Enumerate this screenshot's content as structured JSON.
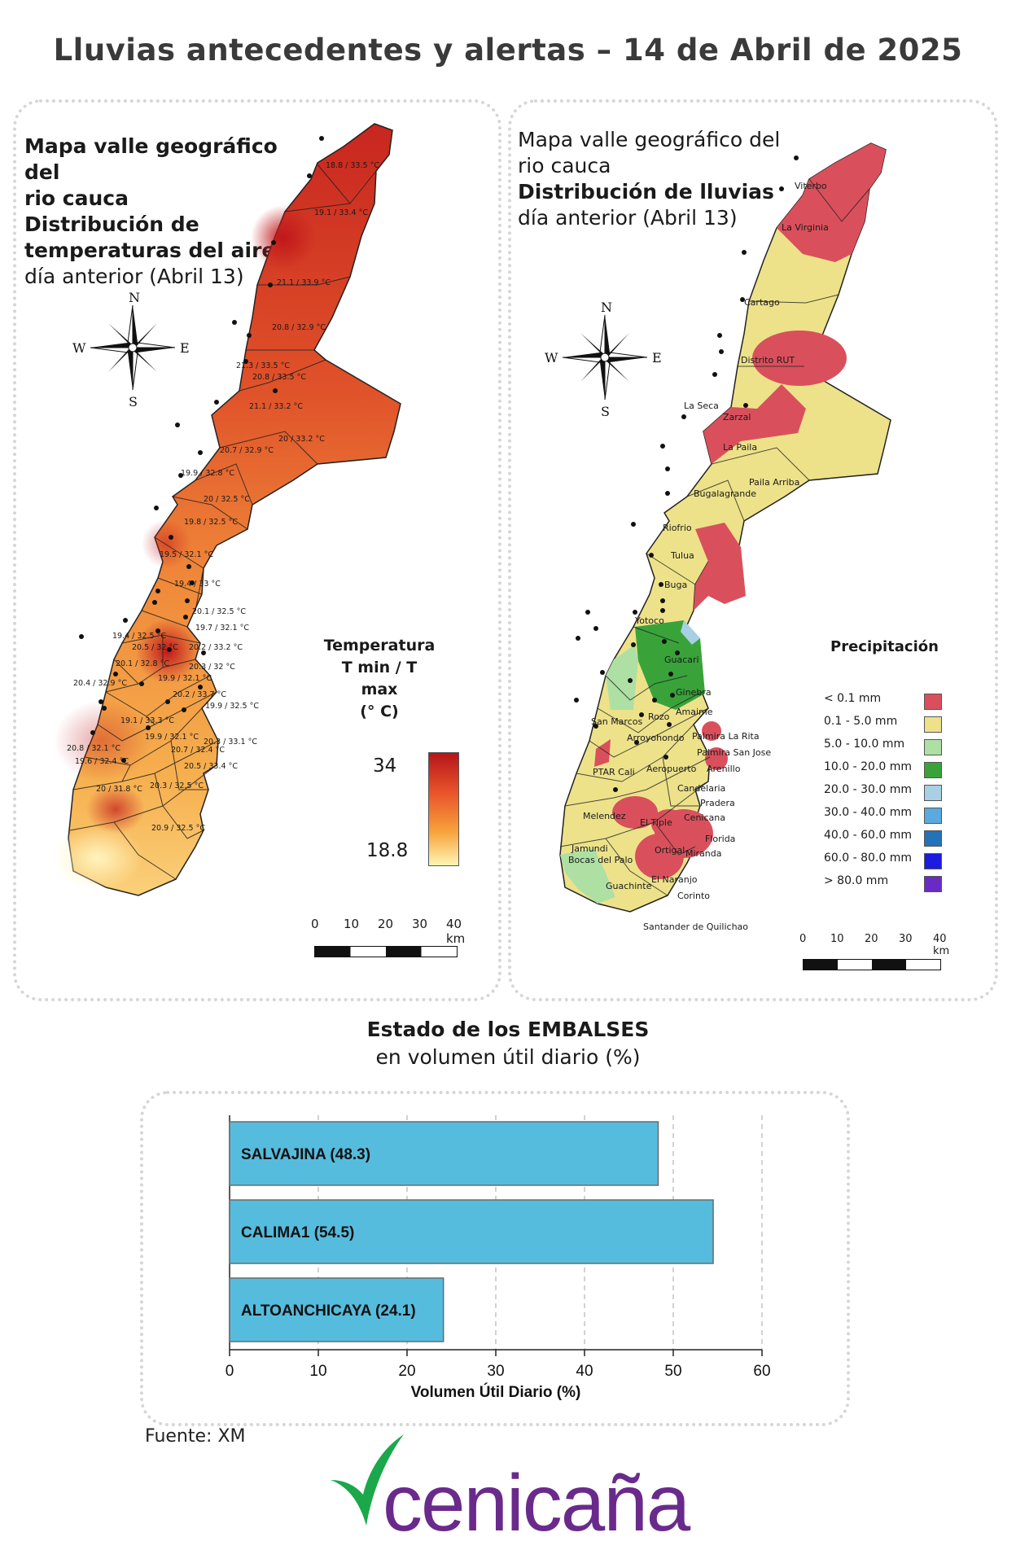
{
  "title": "Lluvias antecedentes y alertas – 14 de Abril de 2025",
  "temperature_map": {
    "title_line1": "Mapa valle geográfico del",
    "title_line2": "rio cauca",
    "title_line3": "Distribución de",
    "title_line4": "temperaturas del aire",
    "title_line5": "día anterior (Abril 13)",
    "compass": {
      "n": "N",
      "s": "S",
      "e": "E",
      "w": "W"
    },
    "legend_title_line1": "Temperatura",
    "legend_title_line2": "T min / T max",
    "legend_title_line3": "(° C)",
    "legend_max": "34",
    "legend_min": "18.8",
    "scale": [
      "0",
      "10",
      "20",
      "30",
      "40 km"
    ],
    "station_labels": [
      "18.8 / 33.5 °C",
      "19.1 / 33.4 °C",
      "21.1 / 33.9 °C",
      "20.8 / 32.9 °C",
      "21.3 / 33.5 °C",
      "20.8 / 33.5 °C",
      "21.1 / 33.2 °C",
      "20 / 33.2 °C",
      "20.7 / 32.9 °C",
      "19.9 / 32.8 °C",
      "20 / 32.5 °C",
      "19.8 / 32.5 °C",
      "19.5 / 32.1 °C",
      "19.4 / 33 °C",
      "20.1 / 32.5 °C",
      "19.7 / 32.1 °C",
      "19.4 / 32.5 °C",
      "20.5 / 32 °C",
      "20.2 / 33.2 °C",
      "20.1 / 32.8 °C",
      "20.3 / 32 °C",
      "20.4 / 32.9 °C",
      "19.9 / 32.1 °C",
      "20.2 / 33.7 °C",
      "19.9 / 32.5 °C",
      "19.1 / 33.3 °C",
      "19.9 / 32.1 °C",
      "20.3 / 33.1 °C",
      "20.8 / 32.1 °C",
      "20.7 / 32.4 °C",
      "19.6 / 32.4 °C",
      "20.5 / 33.4 °C",
      "20 / 31.8 °C",
      "20.3 / 32.5 °C",
      "20.9 / 32.5 °C"
    ]
  },
  "rain_map": {
    "title_line1": "Mapa valle geográfico del",
    "title_line2": "rio cauca",
    "title_line3": "Distribución de lluvias",
    "title_line4": "día anterior (Abril 13)",
    "compass": {
      "n": "N",
      "s": "S",
      "e": "E",
      "w": "W"
    },
    "legend_title": "Precipitación",
    "legend": [
      {
        "label": "< 0.1 mm",
        "color": "#d9505c"
      },
      {
        "label": "0.1 - 5.0 mm",
        "color": "#ede28a"
      },
      {
        "label": "5.0 - 10.0 mm",
        "color": "#aee0a4"
      },
      {
        "label": "10.0 - 20.0 mm",
        "color": "#39a33a"
      },
      {
        "label": "20.0 - 30.0 mm",
        "color": "#a8cfe4"
      },
      {
        "label": "30.0 - 40.0 mm",
        "color": "#5aa9df"
      },
      {
        "label": "40.0 - 60.0 mm",
        "color": "#2373b8"
      },
      {
        "label": "60.0 - 80.0 mm",
        "color": "#1c1ce0"
      },
      {
        "label": "> 80.0 mm",
        "color": "#6a2bc4"
      }
    ],
    "scale": [
      "0",
      "10",
      "20",
      "30",
      "40 km"
    ],
    "cities": [
      "Viterbo",
      "La Virginia",
      "Cartago",
      "Distrito RUT",
      "La Seca",
      "Zarzal",
      "La Paila",
      "Paila Arriba",
      "Bugalagrande",
      "Riofrio",
      "Tulua",
      "Buga",
      "Yotoco",
      "Guacari",
      "Ginebra",
      "Amaime",
      "San Marcos",
      "Rozo",
      "Palmira La Rita",
      "Arroyohondo",
      "Palmira San Jose",
      "Aeropuerto",
      "Arenillo",
      "PTAR Cali",
      "Candelaria",
      "Pradera",
      "Melendez",
      "El Tiple",
      "Cenicana",
      "Florida",
      "Jamundi",
      "Bocas del Palo",
      "Ortigal",
      "Miranda",
      "Guachinte",
      "El Naranjo",
      "Corinto",
      "Santander de Quilichao"
    ]
  },
  "embalses": {
    "title": "Estado de los EMBALSES",
    "subtitle": "en volumen útil diario (%)"
  },
  "chart_data": {
    "type": "bar",
    "orientation": "horizontal",
    "categories": [
      "SALVAJINA (48.3)",
      "CALIMA1 (54.5)",
      "ALTOANCHICAYA (24.1)"
    ],
    "values": [
      48.3,
      54.5,
      24.1
    ],
    "xlabel": "Volumen Útil Diario (%)",
    "ylabel": "",
    "xlim": [
      0,
      60
    ],
    "xticks": [
      "0",
      "10",
      "20",
      "30",
      "40",
      "50",
      "60"
    ],
    "bar_color": "#56bcdd",
    "grid": "vertical dashed"
  },
  "footer": {
    "source": "Fuente: XM",
    "logo_text": "cenicaña",
    "logo_color": "#6a2a8c",
    "logo_leaf_color": "#1aa84a"
  }
}
